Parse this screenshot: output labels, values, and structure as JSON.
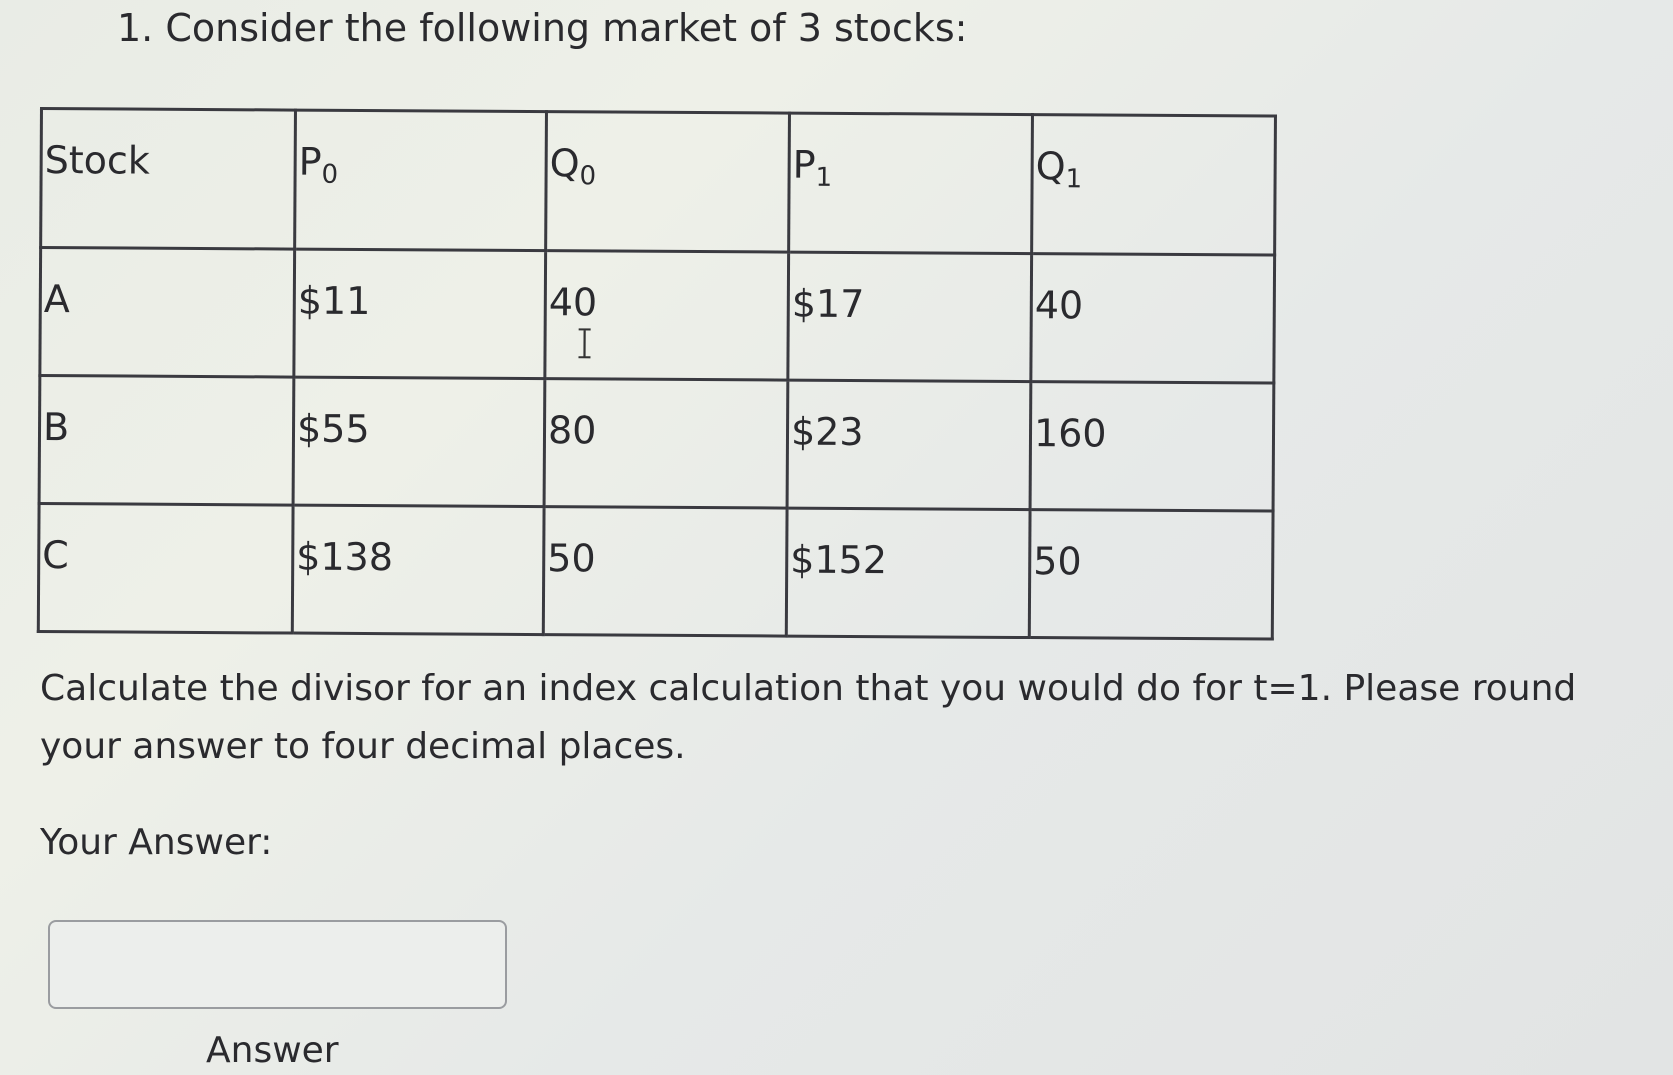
{
  "question": {
    "title": "1. Consider the following market of 3 stocks:",
    "prompt": "Calculate the divisor for an index calculation that you would do for t=1.  Please round your answer to four decimal places.",
    "your_answer_label": "Your Answer:",
    "answer_value": "",
    "answer_button_label": "Answer"
  },
  "table": {
    "headers": [
      {
        "base": "Stock",
        "sub": ""
      },
      {
        "base": "P",
        "sub": "0"
      },
      {
        "base": "Q",
        "sub": "0"
      },
      {
        "base": "P",
        "sub": "1"
      },
      {
        "base": "Q",
        "sub": "1"
      }
    ],
    "rows": [
      [
        "A",
        "$11",
        "40",
        "$17",
        "40"
      ],
      [
        "B",
        "$55",
        "80",
        "$23",
        "160"
      ],
      [
        "C",
        "$138",
        "50",
        "$152",
        "50"
      ]
    ]
  }
}
